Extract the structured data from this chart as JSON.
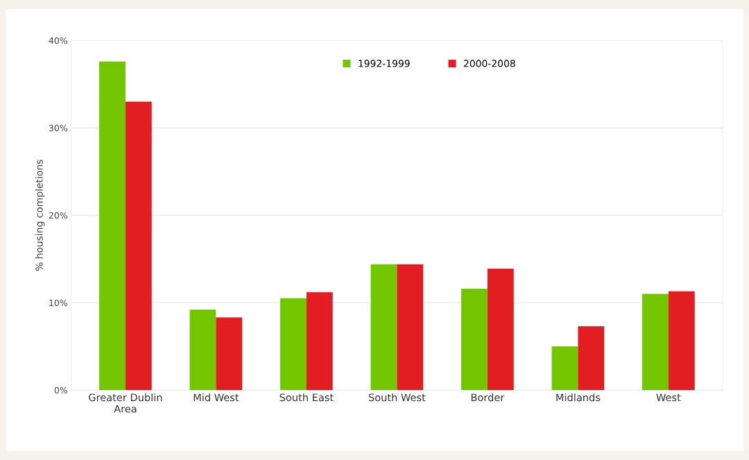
{
  "chart_data": {
    "type": "bar",
    "ylabel": "% housing completions",
    "categories": [
      "Greater Dublin\nArea",
      "Mid West",
      "South East",
      "South West",
      "Border",
      "Midlands",
      "West"
    ],
    "series": [
      {
        "name": "1992-1999",
        "color": "#72c600",
        "values": [
          37.6,
          9.2,
          10.5,
          14.4,
          11.6,
          5.0,
          11.0
        ]
      },
      {
        "name": "2000-2008",
        "color": "#e21e22",
        "values": [
          33.0,
          8.3,
          11.2,
          14.4,
          13.9,
          7.3,
          11.3
        ]
      }
    ],
    "ylim": [
      0,
      40
    ],
    "yticks": [
      {
        "value": 0,
        "label": "0%"
      },
      {
        "value": 10,
        "label": "10%"
      },
      {
        "value": 20,
        "label": "20%"
      },
      {
        "value": 30,
        "label": "30%"
      },
      {
        "value": 40,
        "label": "40%"
      }
    ],
    "grid": "y",
    "legend": "top"
  }
}
